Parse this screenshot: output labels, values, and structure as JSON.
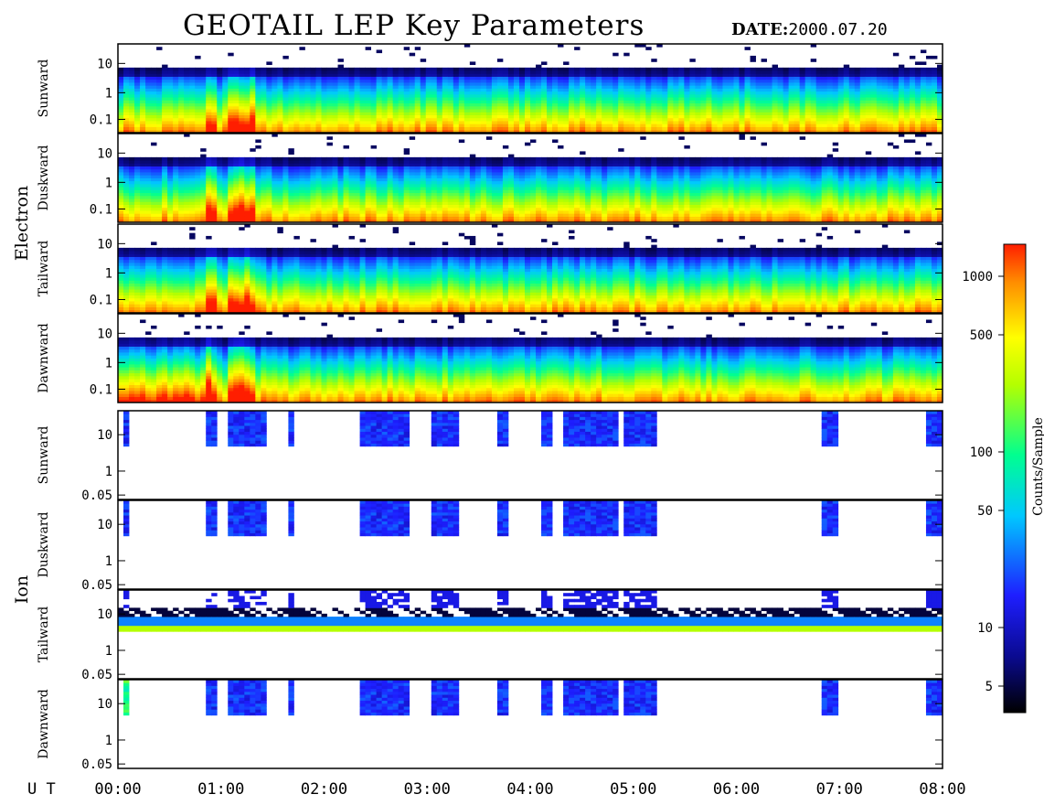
{
  "title": "GEOTAIL LEP Key Parameters",
  "date_label": "DATE:",
  "date_value": "2000.07.20",
  "ut_label": "U T",
  "time_ticks": [
    "00:00",
    "01:00",
    "02:00",
    "03:00",
    "04:00",
    "05:00",
    "06:00",
    "07:00",
    "08:00"
  ],
  "groups": [
    {
      "name": "Electron",
      "panels": [
        "Sunward",
        "Duskward",
        "Tailward",
        "Dawnward"
      ]
    },
    {
      "name": "Ion",
      "panels": [
        "Sunward",
        "Duskward",
        "Tailward",
        "Dawnward"
      ]
    }
  ],
  "electron_y_ticks": [
    "10",
    "1",
    "0.1"
  ],
  "ion_y_ticks": [
    "10",
    "1",
    "0.05"
  ],
  "colorbar": {
    "label": "Counts/Sample",
    "ticks": [
      "1000",
      "500",
      "100",
      "50",
      "10",
      "5"
    ],
    "colors": [
      "#000000",
      "#1a1aff",
      "#00c8ff",
      "#00ff80",
      "#ffff00",
      "#ff8000",
      "#ff0000"
    ]
  },
  "chart_data": {
    "type": "heatmap",
    "title": "GEOTAIL LEP Key Parameters",
    "date": "2000.07.20",
    "xlabel": "U T",
    "x_range": [
      "00:00",
      "08:00"
    ],
    "y_scale": "log",
    "color_scale": "log",
    "color_ticks": [
      1000,
      500,
      100,
      50,
      10,
      5
    ],
    "color_label": "Counts/Sample",
    "series": [
      {
        "group": "Electron",
        "panel": "Sunward"
      },
      {
        "group": "Electron",
        "panel": "Duskward"
      },
      {
        "group": "Electron",
        "panel": "Tailward"
      },
      {
        "group": "Electron",
        "panel": "Dawnward"
      },
      {
        "group": "Ion",
        "panel": "Sunward"
      },
      {
        "group": "Ion",
        "panel": "Duskward"
      },
      {
        "group": "Ion",
        "panel": "Tailward"
      },
      {
        "group": "Ion",
        "panel": "Dawnward"
      }
    ]
  }
}
